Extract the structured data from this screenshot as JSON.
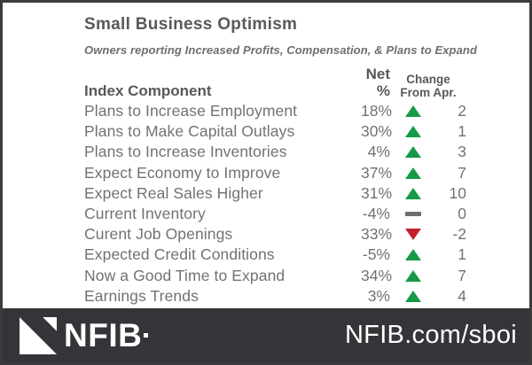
{
  "header": {
    "title": "Small Business Optimism",
    "subtitle": "Owners reporting Increased Profits, Compensation, & Plans to Expand"
  },
  "table": {
    "columns": {
      "component": "Index Component",
      "net": "Net %",
      "change_line1": "Change",
      "change_line2": "From Apr."
    },
    "rows": [
      {
        "component": "Plans to Increase Employment",
        "net": "18%",
        "direction": "up",
        "change": "2"
      },
      {
        "component": "Plans to Make Capital Outlays",
        "net": "30%",
        "direction": "up",
        "change": "1"
      },
      {
        "component": "Plans to Increase Inventories",
        "net": "4%",
        "direction": "up",
        "change": "3"
      },
      {
        "component": "Expect Economy to Improve",
        "net": "37%",
        "direction": "up",
        "change": "7"
      },
      {
        "component": "Expect Real Sales Higher",
        "net": "31%",
        "direction": "up",
        "change": "10"
      },
      {
        "component": "Current Inventory",
        "net": "-4%",
        "direction": "flat",
        "change": "0"
      },
      {
        "component": "Curent Job Openings",
        "net": "33%",
        "direction": "down",
        "change": "-2"
      },
      {
        "component": "Expected Credit Conditions",
        "net": "-5%",
        "direction": "up",
        "change": "1"
      },
      {
        "component": "Now a Good Time to Expand",
        "net": "34%",
        "direction": "up",
        "change": "7"
      },
      {
        "component": "Earnings Trends",
        "net": "3%",
        "direction": "up",
        "change": "4"
      }
    ]
  },
  "footer": {
    "logo_text": "NFIB",
    "url_text": "NFIB.com/sboi"
  },
  "colors": {
    "up": "#169a47",
    "down": "#c2202a",
    "flat": "#6d6e71",
    "heading": "#58595b",
    "row_text": "#717275",
    "footer_bg": "#333538"
  },
  "chart_data": {
    "type": "table",
    "title": "Small Business Optimism",
    "subtitle": "Owners reporting Increased Profits, Compensation, & Plans to Expand",
    "columns": [
      "Index Component",
      "Net %",
      "Change From Apr."
    ],
    "rows": [
      [
        "Plans to Increase Employment",
        18,
        2
      ],
      [
        "Plans to Make Capital Outlays",
        30,
        1
      ],
      [
        "Plans to Increase Inventories",
        4,
        3
      ],
      [
        "Expect Economy to Improve",
        37,
        7
      ],
      [
        "Expect Real Sales Higher",
        31,
        10
      ],
      [
        "Current Inventory",
        -4,
        0
      ],
      [
        "Curent Job Openings",
        33,
        -2
      ],
      [
        "Expected Credit Conditions",
        -5,
        1
      ],
      [
        "Now a Good Time to Expand",
        34,
        7
      ],
      [
        "Earnings Trends",
        3,
        4
      ]
    ]
  }
}
